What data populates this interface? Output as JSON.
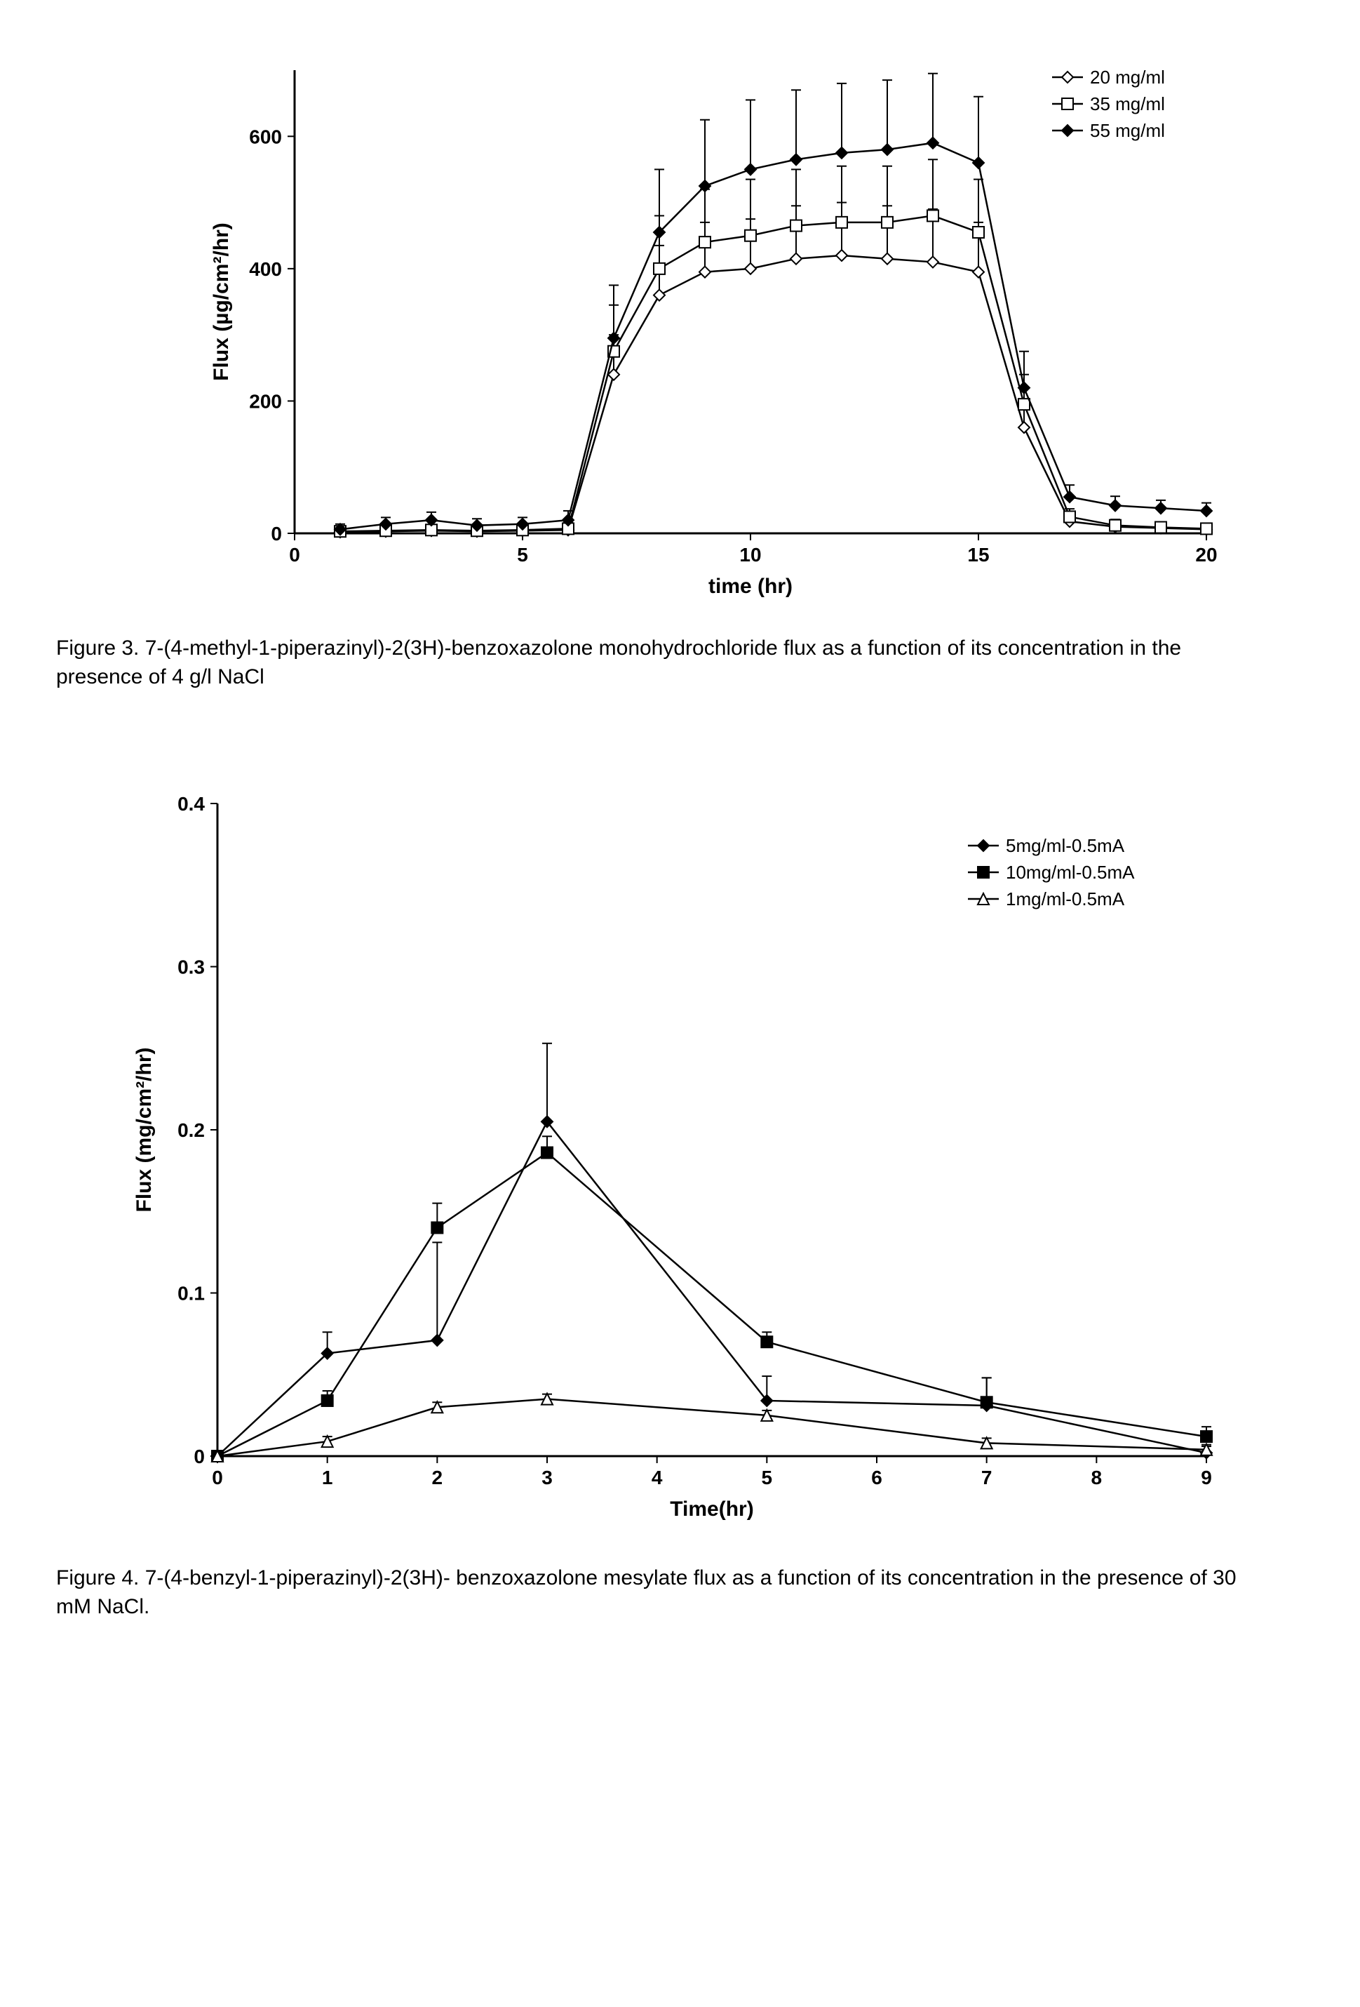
{
  "figure3": {
    "caption": "Figure 3. 7-(4-methyl-1-piperazinyl)-2(3H)-benzoxazolone monohydrochloride flux as a function of its concentration in the presence of 4 g/l NaCl",
    "type": "line",
    "xlabel": "time (hr)",
    "ylabel": "Flux (µg/cm²/hr)",
    "xlim": [
      0,
      20
    ],
    "ylim": [
      0,
      700
    ],
    "xticks": [
      0,
      5,
      10,
      15,
      20
    ],
    "yticks": [
      0,
      200,
      400,
      600
    ],
    "background_color": "#ffffff",
    "line_color": "#000000",
    "series": [
      {
        "label": "20 mg/ml",
        "marker": "diamond-open",
        "x": [
          1,
          2,
          3,
          4,
          5,
          6,
          7,
          8,
          9,
          10,
          11,
          12,
          13,
          14,
          15,
          16,
          17,
          18,
          19,
          20
        ],
        "y": [
          2,
          3,
          4,
          3,
          4,
          5,
          240,
          360,
          395,
          400,
          415,
          420,
          415,
          410,
          395,
          160,
          18,
          10,
          8,
          6
        ],
        "err": [
          5,
          5,
          6,
          5,
          6,
          8,
          60,
          75,
          75,
          75,
          80,
          80,
          80,
          80,
          75,
          40,
          10,
          8,
          6,
          6
        ]
      },
      {
        "label": "35 mg/ml",
        "marker": "square-open",
        "x": [
          1,
          2,
          3,
          4,
          5,
          6,
          7,
          8,
          9,
          10,
          11,
          12,
          13,
          14,
          15,
          16,
          17,
          18,
          19,
          20
        ],
        "y": [
          3,
          4,
          5,
          4,
          5,
          7,
          275,
          400,
          440,
          450,
          465,
          470,
          470,
          480,
          455,
          195,
          25,
          12,
          9,
          7
        ],
        "err": [
          6,
          6,
          7,
          6,
          7,
          9,
          70,
          80,
          80,
          85,
          85,
          85,
          85,
          85,
          80,
          45,
          12,
          9,
          7,
          7
        ]
      },
      {
        "label": "55 mg/ml",
        "marker": "diamond-filled",
        "x": [
          1,
          2,
          3,
          4,
          5,
          6,
          7,
          8,
          9,
          10,
          11,
          12,
          13,
          14,
          15,
          16,
          17,
          18,
          19,
          20
        ],
        "y": [
          6,
          14,
          20,
          12,
          14,
          20,
          295,
          455,
          525,
          550,
          565,
          575,
          580,
          590,
          560,
          220,
          55,
          42,
          38,
          34
        ],
        "err": [
          8,
          10,
          12,
          10,
          10,
          14,
          80,
          95,
          100,
          105,
          105,
          105,
          105,
          105,
          100,
          55,
          18,
          14,
          12,
          12
        ]
      }
    ],
    "legend_pos": "top-right",
    "title_fontsize": 30,
    "label_fontsize": 30,
    "tick_fontsize": 28
  },
  "figure4": {
    "caption": "Figure 4. 7-(4-benzyl-1-piperazinyl)-2(3H)- benzoxazolone mesylate flux as a function of its concentration in the presence of 30 mM NaCl.",
    "type": "line",
    "xlabel": "Time(hr)",
    "ylabel": "Flux (mg/cm²/hr)",
    "xlim": [
      0,
      9
    ],
    "ylim": [
      0,
      0.4
    ],
    "xticks": [
      0,
      1,
      2,
      3,
      4,
      5,
      6,
      7,
      8,
      9
    ],
    "yticks": [
      0,
      0.1,
      0.2,
      0.3,
      0.4
    ],
    "background_color": "#ffffff",
    "line_color": "#000000",
    "series": [
      {
        "label": "5mg/ml-0.5mA",
        "marker": "diamond-filled",
        "x": [
          0,
          1,
          2,
          3,
          5,
          7,
          9
        ],
        "y": [
          0,
          0.063,
          0.071,
          0.205,
          0.034,
          0.031,
          0.002
        ],
        "err": [
          0,
          0.013,
          0.06,
          0.048,
          0.015,
          0.017,
          0.004
        ]
      },
      {
        "label": "10mg/ml-0.5mA",
        "marker": "square-filled",
        "x": [
          0,
          1,
          2,
          3,
          5,
          7,
          9
        ],
        "y": [
          0,
          0.034,
          0.14,
          0.186,
          0.07,
          0.033,
          0.012
        ],
        "err": [
          0,
          0.006,
          0.015,
          0.01,
          0.006,
          0.015,
          0.006
        ]
      },
      {
        "label": "1mg/ml-0.5mA",
        "marker": "triangle-open",
        "x": [
          0,
          1,
          2,
          3,
          5,
          7,
          9
        ],
        "y": [
          0,
          0.009,
          0.03,
          0.035,
          0.025,
          0.008,
          0.004
        ],
        "err": [
          0,
          0.003,
          0.003,
          0.003,
          0.003,
          0.003,
          0.003
        ]
      }
    ],
    "legend_pos": "top-right",
    "title_fontsize": 30,
    "label_fontsize": 30,
    "tick_fontsize": 28
  }
}
